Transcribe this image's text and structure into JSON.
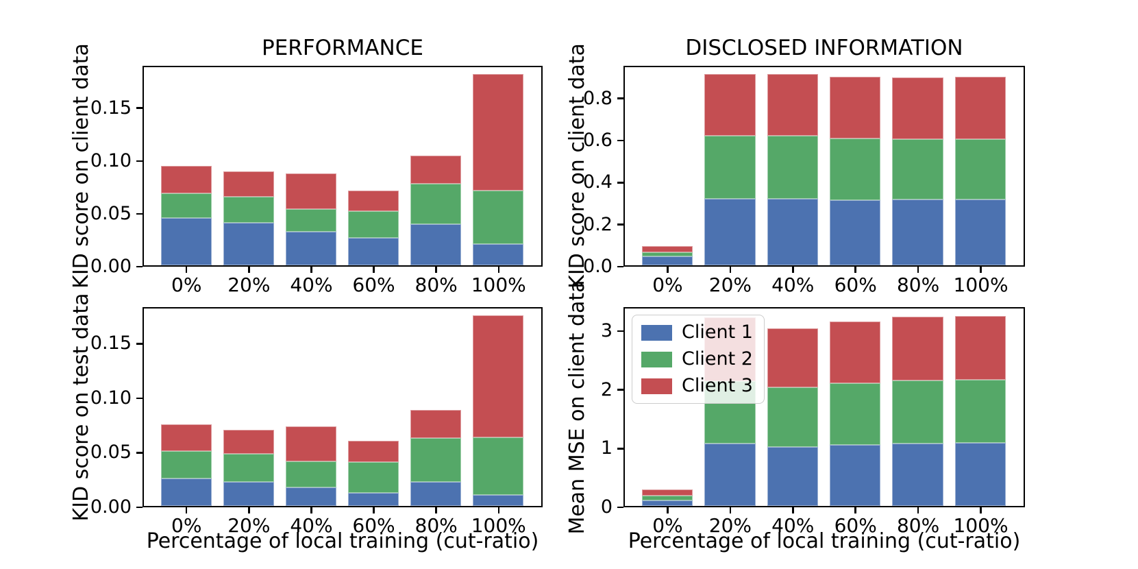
{
  "figure": {
    "background": "#ffffff",
    "column_titles": [
      "PERFORMANCE",
      "DISCLOSED INFORMATION"
    ]
  },
  "palette": {
    "client1": "#4c72b0",
    "client2": "#55a868",
    "client3": "#c44e52",
    "spine": "#000000"
  },
  "legend": {
    "entries": [
      {
        "label": "Client 1",
        "color": "#4c72b0"
      },
      {
        "label": "Client 2",
        "color": "#55a868"
      },
      {
        "label": "Client 3",
        "color": "#c44e52"
      }
    ],
    "position": "upper-left of bottom-right subplot"
  },
  "chart_data": [
    {
      "id": "performance-kid-client",
      "type": "bar",
      "stacked": true,
      "title": "PERFORMANCE",
      "xlabel": "",
      "ylabel": "KID score on client data",
      "categories": [
        "0%",
        "20%",
        "40%",
        "60%",
        "80%",
        "100%"
      ],
      "series": [
        {
          "name": "Client 1",
          "values": [
            0.045,
            0.04,
            0.032,
            0.026,
            0.039,
            0.02
          ]
        },
        {
          "name": "Client 2",
          "values": [
            0.023,
            0.025,
            0.021,
            0.025,
            0.038,
            0.051
          ]
        },
        {
          "name": "Client 3",
          "values": [
            0.026,
            0.024,
            0.034,
            0.02,
            0.027,
            0.11
          ]
        }
      ],
      "yticks": [
        0,
        0.05,
        0.1,
        0.15
      ],
      "ytick_labels": [
        "0.00",
        "0.05",
        "0.10",
        "0.15"
      ],
      "ylim": [
        0,
        0.19
      ],
      "grid": false,
      "legend": false
    },
    {
      "id": "disclosed-kid-client",
      "type": "bar",
      "stacked": true,
      "title": "DISCLOSED INFORMATION",
      "xlabel": "",
      "ylabel": "KID score on client data",
      "categories": [
        "0%",
        "20%",
        "40%",
        "60%",
        "80%",
        "100%"
      ],
      "series": [
        {
          "name": "Client 1",
          "values": [
            0.043,
            0.317,
            0.317,
            0.311,
            0.313,
            0.312
          ]
        },
        {
          "name": "Client 2",
          "values": [
            0.018,
            0.298,
            0.3,
            0.292,
            0.287,
            0.287
          ]
        },
        {
          "name": "Client 3",
          "values": [
            0.029,
            0.294,
            0.294,
            0.294,
            0.294,
            0.297
          ]
        }
      ],
      "yticks": [
        0,
        0.2,
        0.4,
        0.6,
        0.8
      ],
      "ytick_labels": [
        "0.0",
        "0.2",
        "0.4",
        "0.6",
        "0.8"
      ],
      "ylim": [
        0,
        0.955
      ],
      "grid": false,
      "legend": false
    },
    {
      "id": "performance-kid-test",
      "type": "bar",
      "stacked": true,
      "title": "",
      "xlabel": "Percentage of local training (cut-ratio)",
      "ylabel": "KID score on test data",
      "categories": [
        "0%",
        "20%",
        "40%",
        "60%",
        "80%",
        "100%"
      ],
      "series": [
        {
          "name": "Client 1",
          "values": [
            0.025,
            0.022,
            0.017,
            0.012,
            0.022,
            0.01
          ]
        },
        {
          "name": "Client 2",
          "values": [
            0.025,
            0.026,
            0.024,
            0.028,
            0.04,
            0.053
          ]
        },
        {
          "name": "Client 3",
          "values": [
            0.025,
            0.022,
            0.032,
            0.02,
            0.026,
            0.112
          ]
        }
      ],
      "yticks": [
        0,
        0.05,
        0.1,
        0.15
      ],
      "ytick_labels": [
        "0.00",
        "0.05",
        "0.10",
        "0.15"
      ],
      "ylim": [
        0,
        0.1835
      ],
      "grid": false,
      "legend": false
    },
    {
      "id": "disclosed-mse-client",
      "type": "bar",
      "stacked": true,
      "title": "",
      "xlabel": "Percentage of local training (cut-ratio)",
      "ylabel": "Mean MSE on client data",
      "categories": [
        "0%",
        "20%",
        "40%",
        "60%",
        "80%",
        "100%"
      ],
      "series": [
        {
          "name": "Client 1",
          "values": [
            0.09,
            1.06,
            1.01,
            1.04,
            1.06,
            1.08
          ]
        },
        {
          "name": "Client 2",
          "values": [
            0.08,
            1.07,
            1.01,
            1.05,
            1.08,
            1.07
          ]
        },
        {
          "name": "Client 3",
          "values": [
            0.11,
            1.08,
            1.01,
            1.05,
            1.08,
            1.09
          ]
        }
      ],
      "yticks": [
        0,
        1,
        2,
        3
      ],
      "ytick_labels": [
        "0",
        "1",
        "2",
        "3"
      ],
      "ylim": [
        0,
        3.41
      ],
      "grid": false,
      "legend": true
    }
  ]
}
